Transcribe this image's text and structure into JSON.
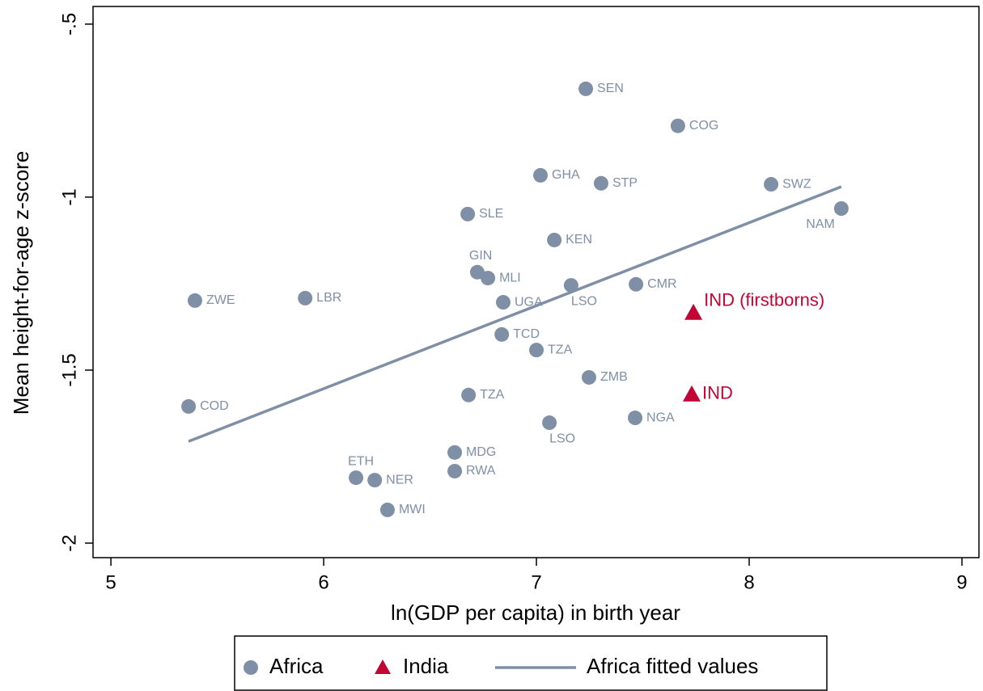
{
  "chart_data": {
    "type": "scatter",
    "x_label": "ln(GDP per capita) in birth year",
    "y_label": "Mean height-for-age z-score",
    "xlim": [
      4.916,
      9.08
    ],
    "ylim": [
      -2.042,
      -0.449
    ],
    "xticks": [
      5,
      6,
      7,
      8,
      9
    ],
    "yticks": [
      -2,
      -1.5,
      -1,
      {
        "value": -0.5,
        "label": "-.5"
      }
    ],
    "series": [
      {
        "name": "Africa",
        "type": "scatter",
        "marker": "circle",
        "color": "#7f8fa6",
        "labels": [
          "SEN",
          "COG",
          "GHA",
          "STP",
          "SWZ",
          "NAM",
          "SLE",
          "KEN",
          "GIN",
          "MLI",
          "LSO",
          "CMR",
          "ZWE",
          "LBR",
          "UGA",
          "TCD",
          "TZA",
          "ZMB",
          "TZA",
          "COD",
          "NGA",
          "LSO",
          "MDG",
          "RWA",
          "ETH",
          "NER",
          "MWI"
        ],
        "x": [
          7.232,
          7.665,
          7.019,
          7.304,
          8.103,
          8.433,
          6.677,
          7.084,
          6.722,
          6.772,
          7.163,
          7.468,
          5.395,
          5.913,
          6.844,
          6.837,
          7.0,
          7.247,
          6.681,
          5.365,
          7.464,
          7.061,
          6.616,
          6.616,
          6.152,
          6.24,
          6.3
        ],
        "values": [
          -0.687,
          -0.794,
          -0.937,
          -0.96,
          -0.963,
          -1.033,
          -1.049,
          -1.124,
          -1.217,
          -1.234,
          -1.255,
          -1.252,
          -1.299,
          -1.292,
          -1.304,
          -1.397,
          -1.442,
          -1.521,
          -1.572,
          -1.605,
          -1.638,
          -1.652,
          -1.738,
          -1.792,
          -1.811,
          -1.818,
          -1.904
        ]
      },
      {
        "name": "India",
        "type": "scatter",
        "marker": "triangle",
        "color": "#c10534",
        "labels": [
          "IND (firstborns)",
          "IND"
        ],
        "x": [
          7.738,
          7.73
        ],
        "values": [
          -1.334,
          -1.57
        ]
      },
      {
        "name": "Africa fitted values",
        "type": "line",
        "color": "#7f8fa6",
        "x": [
          5.365,
          8.433
        ],
        "values": [
          -1.706,
          -0.97
        ]
      }
    ]
  }
}
